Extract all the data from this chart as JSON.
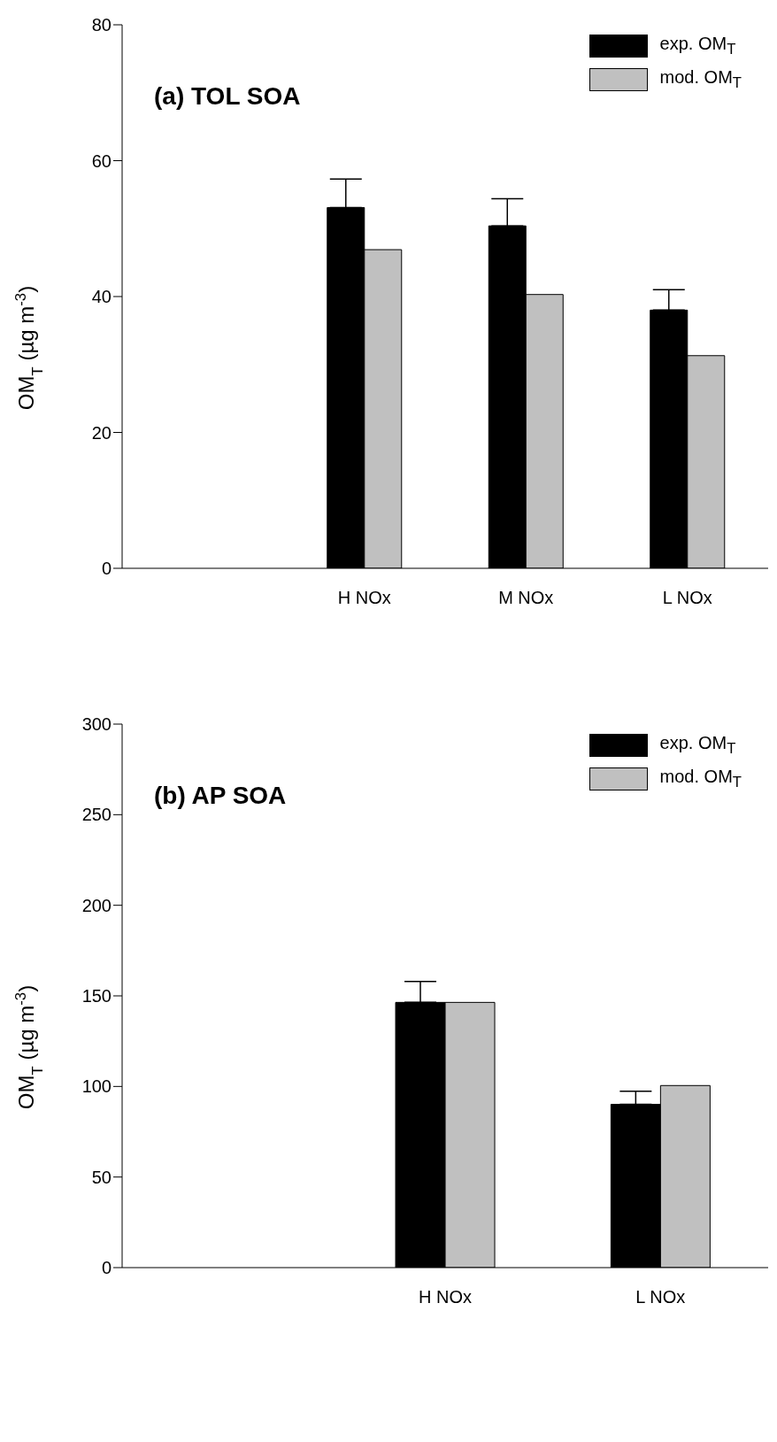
{
  "chart_data": [
    {
      "type": "bar",
      "title": "(a) TOL SOA",
      "ylabel": "OM$_{T}$ (µg m$^{-3}$)",
      "categories": [
        null,
        "H NOx",
        "M NOx",
        "L NOx"
      ],
      "series": [
        {
          "name": "exp. OM$_{T}$",
          "color": "#000000",
          "values": [
            null,
            53.1,
            50.4,
            38.0
          ],
          "errors": [
            null,
            [
              53.1,
              57.3
            ],
            [
              50.4,
              54.4
            ],
            [
              38.0,
              41.0
            ]
          ]
        },
        {
          "name": "mod. OM$_{T}$",
          "color": "#c0c0c0",
          "values": [
            null,
            46.9,
            40.3,
            31.3
          ]
        }
      ],
      "ylim": [
        0,
        80
      ],
      "yticks": [
        0,
        20,
        40,
        60,
        80
      ],
      "grid": false,
      "legend": "top right"
    },
    {
      "type": "bar",
      "title": "(b) AP SOA",
      "ylabel": "OM$_{T}$ (µg m$^{-3}$)",
      "categories": [
        null,
        "H NOx",
        "L NOx"
      ],
      "series": [
        {
          "name": "exp. OM$_{T}$",
          "color": "#000000",
          "values": [
            null,
            146.4,
            90.1
          ],
          "errors": [
            null,
            [
              146.4,
              158.0
            ],
            [
              90.1,
              97.3
            ]
          ]
        },
        {
          "name": "mod. OM$_{T}$",
          "color": "#c0c0c0",
          "values": [
            null,
            146.4,
            100.5
          ]
        }
      ],
      "ylim": [
        0,
        300
      ],
      "yticks": [
        0,
        50,
        100,
        150,
        200,
        250,
        300
      ],
      "grid": false,
      "legend": "top right"
    }
  ]
}
